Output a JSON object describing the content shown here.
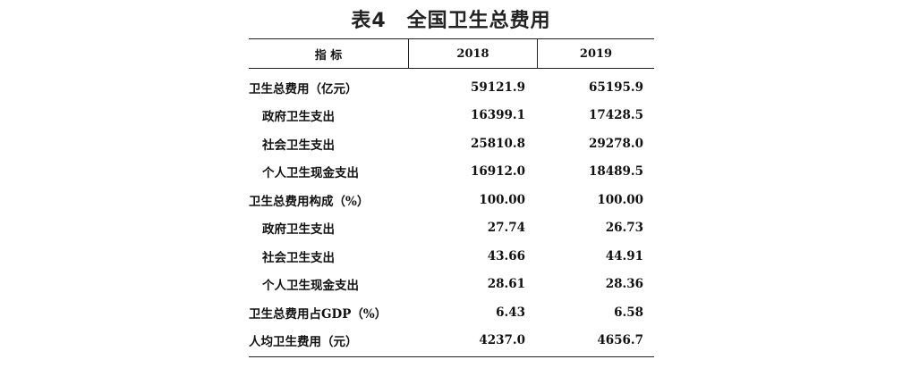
{
  "title": "表4　全国卫生总费用",
  "table": {
    "headers": {
      "indicator": "指  标",
      "year1": "2018",
      "year2": "2019"
    },
    "rows": [
      {
        "label": "卫生总费用（亿元）",
        "indent": false,
        "v2018": "59121.9",
        "v2019": "65195.9"
      },
      {
        "label": "政府卫生支出",
        "indent": true,
        "v2018": "16399.1",
        "v2019": "17428.5"
      },
      {
        "label": "社会卫生支出",
        "indent": true,
        "v2018": "25810.8",
        "v2019": "29278.0"
      },
      {
        "label": "个人卫生现金支出",
        "indent": true,
        "v2018": "16912.0",
        "v2019": "18489.5"
      },
      {
        "label": "卫生总费用构成（%）",
        "indent": false,
        "v2018": "100.00",
        "v2019": "100.00"
      },
      {
        "label": "政府卫生支出",
        "indent": true,
        "v2018": "27.74",
        "v2019": "26.73"
      },
      {
        "label": "社会卫生支出",
        "indent": true,
        "v2018": "43.66",
        "v2019": "44.91"
      },
      {
        "label": "个人卫生现金支出",
        "indent": true,
        "v2018": "28.61",
        "v2019": "28.36"
      },
      {
        "label": "卫生总费用占GDP（%）",
        "indent": false,
        "v2018": "6.43",
        "v2019": "6.58"
      },
      {
        "label": "人均卫生费用（元）",
        "indent": false,
        "v2018": "4237.0",
        "v2019": "4656.7"
      }
    ]
  }
}
